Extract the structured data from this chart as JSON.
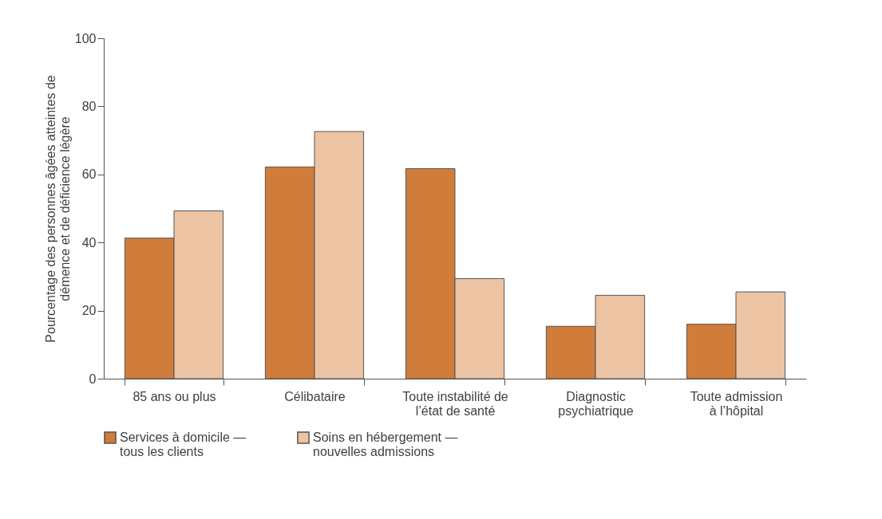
{
  "chart_data": {
    "type": "bar",
    "ylabel": "Pourcentage des personnes âgées atteintes de\ndémence et de déficience légère",
    "categories": [
      "85 ans ou plus",
      "Célibataire",
      "Toute instabilité de\nl’état de santé",
      "Diagnostic\npsychiatrique",
      "Toute admission\nà l’hôpital"
    ],
    "series": [
      {
        "name": "Services à domicile —\ntous les clients",
        "color": "#d07c3a",
        "values": [
          41.3,
          62.2,
          61.7,
          15.4,
          16
        ]
      },
      {
        "name": "Soins en hébergement —\nnouvelles admissions",
        "color": "#ecc3a3",
        "values": [
          49.3,
          72.6,
          29.4,
          24.5,
          25.5
        ]
      }
    ],
    "ylim": [
      0,
      100
    ],
    "yticks": [
      0,
      20,
      40,
      60,
      80,
      100
    ],
    "grid": false,
    "legend": "bottom"
  }
}
